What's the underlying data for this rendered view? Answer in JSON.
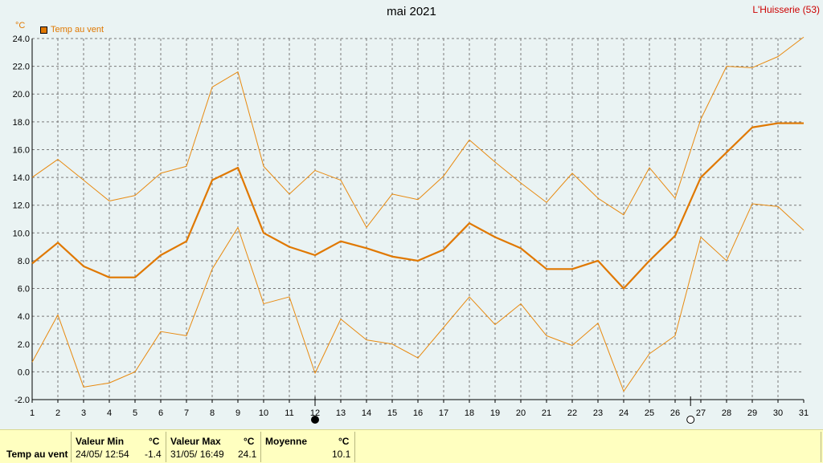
{
  "chart_data": {
    "type": "line",
    "title": "mai 2021",
    "station": "L'Huisserie (53)",
    "ylabel": "°C",
    "legend": "Temp au vent",
    "xlim": [
      1,
      31
    ],
    "ylim": [
      -2,
      24
    ],
    "yticks": [
      "-2.0",
      "0.0",
      "2.0",
      "4.0",
      "6.0",
      "8.0",
      "10.0",
      "12.0",
      "14.0",
      "16.0",
      "18.0",
      "20.0",
      "22.0",
      "24.0"
    ],
    "xticks": [
      "1",
      "2",
      "3",
      "4",
      "5",
      "6",
      "7",
      "8",
      "9",
      "10",
      "11",
      "12",
      "13",
      "14",
      "15",
      "16",
      "17",
      "18",
      "19",
      "20",
      "21",
      "22",
      "23",
      "24",
      "25",
      "26",
      "27",
      "28",
      "29",
      "30",
      "31"
    ],
    "grid": true,
    "x": [
      1,
      2,
      3,
      4,
      5,
      6,
      7,
      8,
      9,
      10,
      11,
      12,
      13,
      14,
      15,
      16,
      17,
      18,
      19,
      20,
      21,
      22,
      23,
      24,
      25,
      26,
      27,
      28,
      29,
      30,
      31
    ],
    "series": [
      {
        "name": "max",
        "values": [
          14.0,
          15.3,
          13.8,
          12.3,
          12.7,
          14.3,
          14.8,
          20.5,
          21.6,
          14.8,
          12.8,
          14.5,
          13.8,
          10.4,
          12.8,
          12.4,
          14.1,
          16.7,
          15.1,
          13.6,
          12.2,
          14.3,
          12.5,
          11.3,
          14.7,
          12.5,
          18.2,
          22.0,
          21.9,
          22.7,
          24.1
        ],
        "color": "#e88a10",
        "width": 1
      },
      {
        "name": "moyenne",
        "values": [
          7.8,
          9.3,
          7.6,
          6.8,
          6.8,
          8.4,
          9.4,
          13.8,
          14.7,
          10.0,
          9.0,
          8.4,
          9.4,
          8.9,
          8.3,
          8.0,
          8.8,
          10.7,
          9.7,
          8.9,
          7.4,
          7.4,
          8.0,
          6.0,
          8.0,
          9.8,
          14.0,
          15.8,
          17.6,
          17.9,
          17.9
        ],
        "color": "#e07800",
        "width": 2.2
      },
      {
        "name": "min",
        "values": [
          0.7,
          4.1,
          -1.1,
          -0.8,
          0.0,
          2.9,
          2.6,
          7.4,
          10.4,
          4.9,
          5.4,
          -0.1,
          3.8,
          2.3,
          2.0,
          1.0,
          3.2,
          5.4,
          3.4,
          4.9,
          2.6,
          1.9,
          3.5,
          -1.4,
          1.3,
          2.6,
          9.7,
          8.0,
          12.1,
          11.9,
          10.2
        ],
        "color": "#e88a10",
        "width": 1
      }
    ],
    "moon_phases": [
      {
        "day": 12,
        "phase": "new"
      },
      {
        "day": 26.6,
        "phase": "full"
      }
    ]
  },
  "footer": {
    "row_label": "Temp au vent",
    "min_header": "Valeur Min",
    "min_unit": "°C",
    "min_date": "24/05/ 12:54",
    "min_value": "-1.4",
    "max_header": "Valeur Max",
    "max_unit": "°C",
    "max_date": "31/05/ 16:49",
    "max_value": "24.1",
    "avg_header": "Moyenne",
    "avg_unit": "°C",
    "avg_value": "10.1"
  }
}
